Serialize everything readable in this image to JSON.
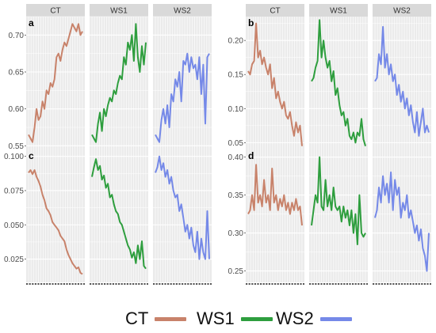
{
  "legend": {
    "items": [
      {
        "label": "CT",
        "color": "#C8826A"
      },
      {
        "label": "WS1",
        "color": "#2E9E3E"
      },
      {
        "label": "WS2",
        "color": "#7589E8"
      }
    ]
  },
  "chart_data": [
    {
      "type": "line",
      "panel_label": "a",
      "facets": [
        "CT",
        "WS1",
        "WS2"
      ],
      "ylim": [
        0.545,
        0.725
      ],
      "yticks": [
        "0.70",
        "0.65",
        "0.60",
        "0.55"
      ],
      "ytick_values": [
        0.7,
        0.65,
        0.6,
        0.55
      ],
      "series": [
        {
          "name": "CT",
          "values": [
            0.565,
            0.56,
            0.555,
            0.575,
            0.6,
            0.585,
            0.59,
            0.61,
            0.6,
            0.625,
            0.62,
            0.635,
            0.63,
            0.64,
            0.67,
            0.675,
            0.665,
            0.68,
            0.69,
            0.685,
            0.695,
            0.705,
            0.715,
            0.71,
            0.705,
            0.715,
            0.7,
            0.705
          ]
        },
        {
          "name": "WS1",
          "values": [
            0.565,
            0.56,
            0.555,
            0.58,
            0.595,
            0.57,
            0.6,
            0.59,
            0.605,
            0.615,
            0.61,
            0.625,
            0.62,
            0.635,
            0.645,
            0.64,
            0.67,
            0.66,
            0.69,
            0.68,
            0.7,
            0.665,
            0.715,
            0.67,
            0.65,
            0.685,
            0.66,
            0.69
          ]
        },
        {
          "name": "WS2",
          "values": [
            0.565,
            0.56,
            0.555,
            0.585,
            0.6,
            0.58,
            0.605,
            0.575,
            0.62,
            0.61,
            0.64,
            0.63,
            0.65,
            0.61,
            0.665,
            0.66,
            0.675,
            0.65,
            0.67,
            0.655,
            0.66,
            0.64,
            0.67,
            0.62,
            0.66,
            0.58,
            0.67,
            0.675
          ]
        }
      ]
    },
    {
      "type": "line",
      "panel_label": "b",
      "facets": [
        "CT",
        "WS1",
        "WS2"
      ],
      "ylim": [
        0.04,
        0.235
      ],
      "yticks": [
        "0.20",
        "0.15",
        "0.10",
        "0.05"
      ],
      "ytick_values": [
        0.2,
        0.15,
        0.1,
        0.05
      ],
      "series": [
        {
          "name": "CT",
          "values": [
            0.155,
            0.15,
            0.165,
            0.17,
            0.225,
            0.175,
            0.185,
            0.165,
            0.175,
            0.16,
            0.15,
            0.165,
            0.13,
            0.145,
            0.115,
            0.125,
            0.11,
            0.1,
            0.11,
            0.09,
            0.085,
            0.095,
            0.075,
            0.06,
            0.08,
            0.065,
            0.075,
            0.045
          ]
        },
        {
          "name": "WS1",
          "values": [
            0.14,
            0.145,
            0.16,
            0.17,
            0.23,
            0.175,
            0.2,
            0.175,
            0.16,
            0.17,
            0.14,
            0.155,
            0.12,
            0.13,
            0.105,
            0.09,
            0.095,
            0.075,
            0.085,
            0.06,
            0.055,
            0.065,
            0.05,
            0.065,
            0.06,
            0.085,
            0.055,
            0.045
          ]
        },
        {
          "name": "WS2",
          "values": [
            0.14,
            0.145,
            0.18,
            0.165,
            0.22,
            0.16,
            0.18,
            0.15,
            0.165,
            0.14,
            0.15,
            0.12,
            0.135,
            0.11,
            0.125,
            0.1,
            0.115,
            0.09,
            0.105,
            0.08,
            0.065,
            0.095,
            0.06,
            0.08,
            0.1,
            0.065,
            0.075,
            0.065
          ]
        }
      ]
    },
    {
      "type": "line",
      "panel_label": "c",
      "facets": [
        "CT",
        "WS1",
        "WS2"
      ],
      "ylim": [
        0.008,
        0.105
      ],
      "yticks": [
        "0.100",
        "0.075",
        "0.050",
        "0.025"
      ],
      "ytick_values": [
        0.1,
        0.075,
        0.05,
        0.025
      ],
      "series": [
        {
          "name": "CT",
          "values": [
            0.088,
            0.09,
            0.087,
            0.09,
            0.085,
            0.082,
            0.078,
            0.072,
            0.068,
            0.062,
            0.06,
            0.057,
            0.052,
            0.05,
            0.048,
            0.046,
            0.042,
            0.04,
            0.038,
            0.032,
            0.028,
            0.025,
            0.022,
            0.02,
            0.018,
            0.019,
            0.015,
            0.014
          ]
        },
        {
          "name": "WS1",
          "values": [
            0.085,
            0.092,
            0.098,
            0.09,
            0.093,
            0.083,
            0.086,
            0.077,
            0.08,
            0.07,
            0.072,
            0.065,
            0.06,
            0.058,
            0.052,
            0.05,
            0.045,
            0.04,
            0.035,
            0.032,
            0.026,
            0.03,
            0.022,
            0.035,
            0.025,
            0.038,
            0.02,
            0.018
          ]
        },
        {
          "name": "WS2",
          "values": [
            0.088,
            0.092,
            0.1,
            0.09,
            0.095,
            0.085,
            0.09,
            0.08,
            0.085,
            0.075,
            0.07,
            0.072,
            0.06,
            0.065,
            0.055,
            0.045,
            0.05,
            0.04,
            0.048,
            0.035,
            0.03,
            0.045,
            0.025,
            0.04,
            0.03,
            0.025,
            0.06,
            0.025
          ]
        }
      ]
    },
    {
      "type": "line",
      "panel_label": "d",
      "facets": [
        "CT",
        "WS1",
        "WS2"
      ],
      "ylim": [
        0.235,
        0.41
      ],
      "yticks": [
        "0.40",
        "0.35",
        "0.30",
        "0.25"
      ],
      "ytick_values": [
        0.4,
        0.35,
        0.3,
        0.25
      ],
      "series": [
        {
          "name": "CT",
          "values": [
            0.325,
            0.33,
            0.35,
            0.33,
            0.39,
            0.34,
            0.35,
            0.335,
            0.37,
            0.34,
            0.35,
            0.33,
            0.385,
            0.34,
            0.35,
            0.33,
            0.345,
            0.335,
            0.35,
            0.33,
            0.34,
            0.325,
            0.34,
            0.33,
            0.345,
            0.33,
            0.335,
            0.31
          ]
        },
        {
          "name": "WS1",
          "values": [
            0.31,
            0.33,
            0.35,
            0.34,
            0.4,
            0.335,
            0.33,
            0.37,
            0.335,
            0.35,
            0.33,
            0.36,
            0.335,
            0.33,
            0.335,
            0.315,
            0.335,
            0.32,
            0.33,
            0.31,
            0.33,
            0.3,
            0.325,
            0.285,
            0.35,
            0.3,
            0.295,
            0.3
          ]
        },
        {
          "name": "WS2",
          "values": [
            0.32,
            0.33,
            0.36,
            0.34,
            0.375,
            0.35,
            0.365,
            0.34,
            0.38,
            0.33,
            0.37,
            0.35,
            0.36,
            0.32,
            0.34,
            0.33,
            0.35,
            0.32,
            0.33,
            0.315,
            0.3,
            0.31,
            0.29,
            0.305,
            0.28,
            0.27,
            0.25,
            0.3
          ]
        }
      ]
    }
  ]
}
